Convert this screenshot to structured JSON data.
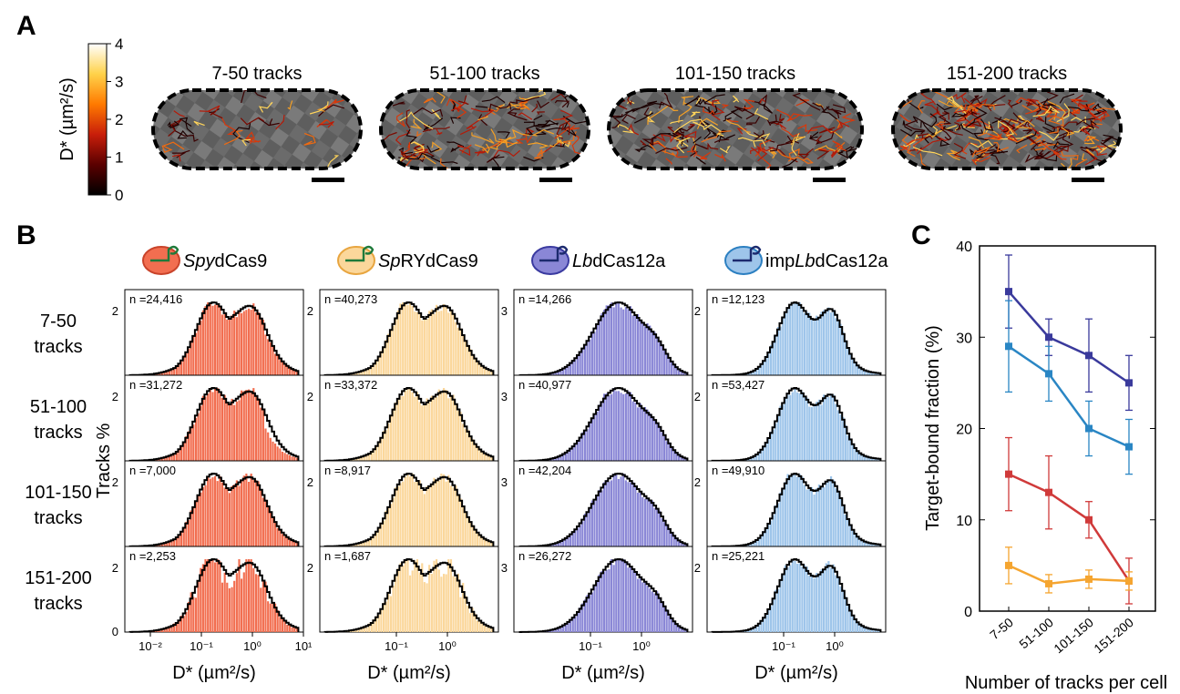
{
  "panel_labels": {
    "a": "A",
    "b": "B",
    "c": "C"
  },
  "colorbar": {
    "label": "D* (µm²/s)",
    "ticks": [
      "4",
      "3",
      "2",
      "1",
      "0"
    ],
    "values": [
      4,
      3,
      2,
      1,
      0
    ],
    "colormap": [
      "#000000",
      "#5a0000",
      "#c81e0a",
      "#ff7a00",
      "#ffd24a",
      "#ffffff"
    ]
  },
  "cells": [
    {
      "title": "7-50 tracks"
    },
    {
      "title": "51-100 tracks"
    },
    {
      "title": "101-150 tracks"
    },
    {
      "title": "151-200 tracks"
    }
  ],
  "row_labels": [
    {
      "line1": "7-50",
      "line2": "tracks"
    },
    {
      "line1": "51-100",
      "line2": "tracks"
    },
    {
      "line1": "101-150",
      "line2": "tracks"
    },
    {
      "line1": "151-200",
      "line2": "tracks"
    }
  ],
  "tracks_axis_label": "Tracks %",
  "proteins": [
    {
      "italic": "Spy",
      "rest": "dCas9",
      "prefix": "",
      "color": "#f26e50",
      "outline": "#c9432a"
    },
    {
      "italic": "Sp",
      "rest": "RYdCas9",
      "prefix": "",
      "color": "#fbd79b",
      "outline": "#e8a53f"
    },
    {
      "italic": "Lb",
      "rest": "dCas12a",
      "prefix": "",
      "color": "#8a87d6",
      "outline": "#3a3aa0"
    },
    {
      "italic": "Lb",
      "rest": "dCas12a",
      "prefix": "imp",
      "color": "#9ec5ea",
      "outline": "#2b7fc1"
    }
  ],
  "hist_counts": [
    [
      "n =24,416",
      "n =31,272",
      "n =7,000",
      "n =2,253"
    ],
    [
      "n =40,273",
      "n =33,372",
      "n =8,917",
      "n =1,687"
    ],
    [
      "n =14,266",
      "n =40,977",
      "n =42,204",
      "n =26,272"
    ],
    [
      "n =12,123",
      "n =53,427",
      "n =49,910",
      "n =25,221"
    ]
  ],
  "hist_ylabels": [
    "2",
    "2",
    "3",
    "2"
  ],
  "hist_xlabel": "D* (µm²/s)",
  "hist_xticks_first": [
    "10⁻²",
    "10⁻¹",
    "10⁰",
    "10¹"
  ],
  "hist_xticks": [
    "10⁻¹",
    "10⁰"
  ],
  "chart_data": {
    "type": "line",
    "title": "",
    "xlabel": "Number of tracks per cell",
    "ylabel": "Target-bound fraction (%)",
    "categories": [
      "7-50",
      "51-100",
      "101-150",
      "151-200"
    ],
    "ylim": [
      0,
      40
    ],
    "yticks": [
      0,
      10,
      20,
      30,
      40
    ],
    "grid": false,
    "series": [
      {
        "color": "#3a3a9c",
        "values": [
          35,
          30,
          28,
          25
        ],
        "err": [
          4,
          2,
          4,
          3
        ]
      },
      {
        "color": "#2a86c4",
        "values": [
          29,
          26,
          20,
          18
        ],
        "err": [
          5,
          3,
          3,
          3
        ]
      },
      {
        "color": "#d03a3a",
        "values": [
          15,
          13,
          10,
          3.3
        ],
        "err": [
          4,
          4,
          2,
          2.5
        ]
      },
      {
        "color": "#f5a530",
        "values": [
          5,
          3,
          3.5,
          3.3
        ],
        "err": [
          2,
          1,
          1,
          1
        ]
      }
    ]
  }
}
